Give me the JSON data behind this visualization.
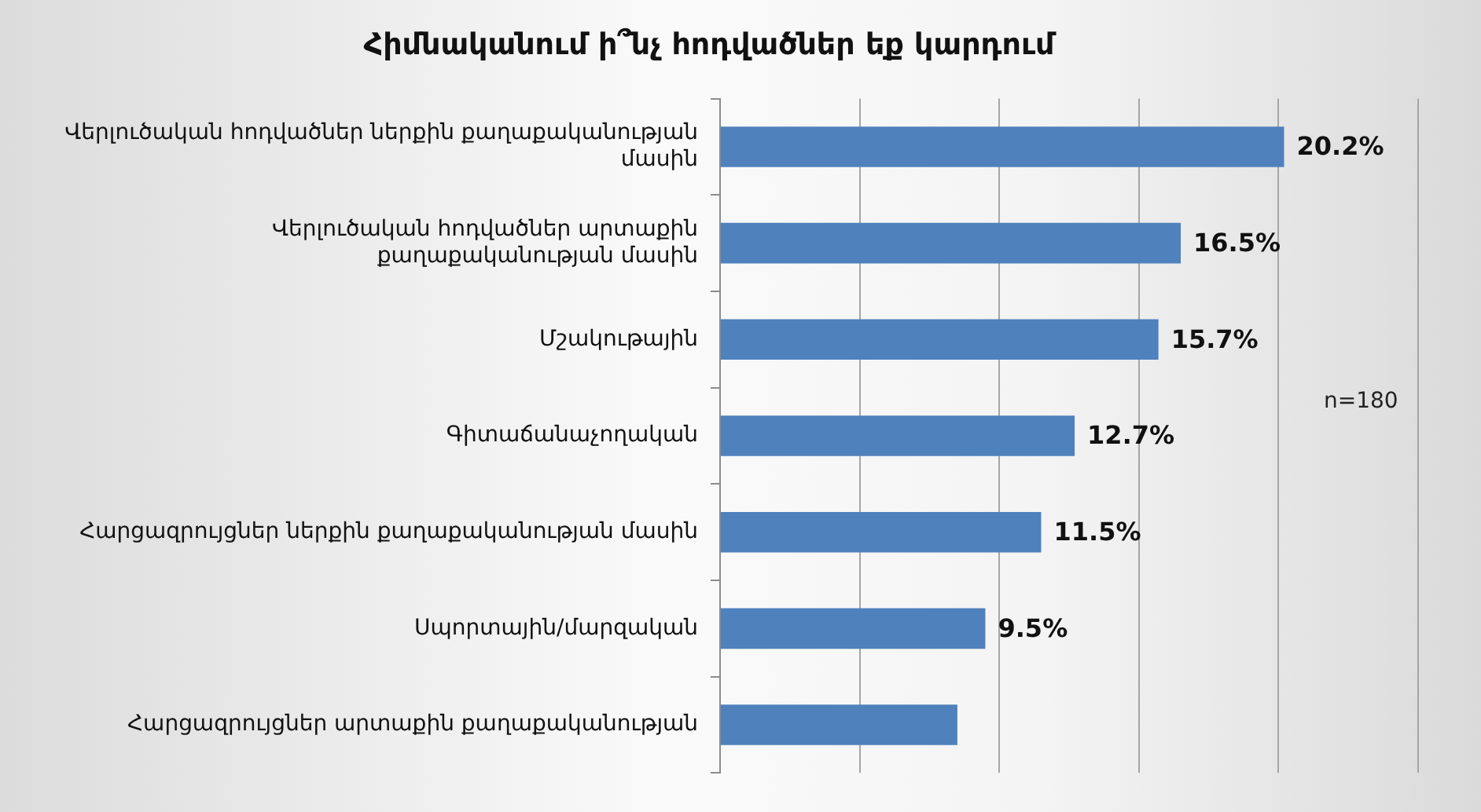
{
  "chart_data": {
    "type": "bar",
    "orientation": "horizontal",
    "title": "Հիմնականում ի՞նչ հոդվածներ եք կարդում",
    "categories": [
      "Վերլուծական հոդվածներ ներքին քաղաքականության մասին",
      "Վերլուծական հոդվածներ արտաքին քաղաքականության մասին",
      "Մշակութային",
      "Գիտաճանաչողական",
      "Հարցազրույցներ ներքին քաղաքականության մասին",
      "Սպորտային/մարզական",
      "Հարցազրույցներ արտաքին քաղաքականության"
    ],
    "values": [
      20.2,
      16.5,
      15.7,
      12.7,
      11.5,
      9.5,
      8.5
    ],
    "value_labels": [
      "20.2%",
      "16.5%",
      "15.7%",
      "12.7%",
      "11.5%",
      "9.5%",
      null
    ],
    "color": "#4f81bd",
    "xlim": [
      0,
      25
    ],
    "xticks": [
      {
        "value": 0,
        "label": null
      },
      {
        "value": 5,
        "label": null
      },
      {
        "value": 10,
        "label": null
      },
      {
        "value": 15,
        "label": null
      },
      {
        "value": 20,
        "label": null
      },
      {
        "value": 25,
        "label": null
      }
    ],
    "grid": "x",
    "legend": false,
    "tick_labels": "y",
    "annotations": [
      "n=180"
    ]
  }
}
